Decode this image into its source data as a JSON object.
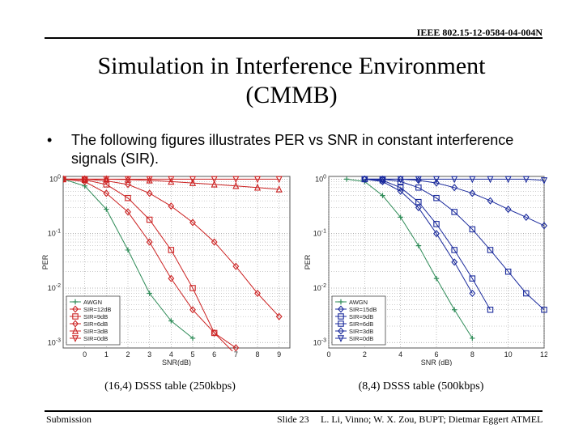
{
  "slide": {
    "doc_id": "IEEE 802.15-12-0584-04-004N",
    "title_line1": "Simulation in Interference Environment",
    "title_line2": "(CMMB)",
    "bullet_symbol": "•",
    "bullet_text": "The following figures illustrates PER vs SNR in constant interference signals (SIR).",
    "caption_left": "(16,4) DSSS table (250kbps)",
    "caption_right": "(8,4) DSSS table (500kbps)",
    "footer_left": "Submission",
    "footer_mid": "Slide 23",
    "footer_right": "L. Li, Vinno; W. X. Zou, BUPT; Dietmar Eggert ATMEL"
  },
  "chart_data": [
    {
      "type": "line",
      "title": "",
      "xlabel": "SNR(dB)",
      "ylabel": "PER",
      "x_ticks": [
        "0",
        "1",
        "2",
        "3",
        "4",
        "5",
        "6",
        "7",
        "8",
        "9"
      ],
      "y_ticks": [
        "10^0",
        "10^-1",
        "10^-2",
        "10^-3"
      ],
      "xlim": [
        -1,
        9.5
      ],
      "ylim_log10": [
        -3.1,
        0.05
      ],
      "log_y": true,
      "grid": true,
      "legend_position": "bottom-left",
      "series": [
        {
          "name": "AWGN",
          "marker": "plus",
          "color": "#2e8b57",
          "x": [
            -1,
            0,
            1,
            2,
            3,
            4,
            5
          ],
          "y": [
            1,
            0.75,
            0.28,
            0.05,
            0.008,
            0.0025,
            0.0012
          ]
        },
        {
          "name": "SIR=12dB",
          "marker": "diamond",
          "color": "#cc2222",
          "x": [
            -1,
            0,
            1,
            2,
            3,
            4,
            5,
            6,
            7
          ],
          "y": [
            1,
            0.9,
            0.55,
            0.25,
            0.07,
            0.015,
            0.004,
            0.0015,
            0.0008
          ]
        },
        {
          "name": "SIR=9dB",
          "marker": "square",
          "color": "#cc2222",
          "x": [
            -1,
            0,
            1,
            2,
            3,
            4,
            5,
            6,
            7
          ],
          "y": [
            1,
            0.97,
            0.8,
            0.45,
            0.18,
            0.05,
            0.01,
            0.0015,
            0.0006
          ]
        },
        {
          "name": "SIR=6dB",
          "marker": "diamond",
          "color": "#cc2222",
          "x": [
            -1,
            0,
            1,
            2,
            3,
            4,
            5,
            6,
            7,
            8,
            9
          ],
          "y": [
            1,
            1,
            0.93,
            0.8,
            0.55,
            0.32,
            0.16,
            0.07,
            0.025,
            0.008,
            0.003
          ]
        },
        {
          "name": "SIR=3dB",
          "marker": "triangle-up",
          "color": "#cc2222",
          "x": [
            -1,
            0,
            1,
            2,
            3,
            4,
            5,
            6,
            7,
            8,
            9
          ],
          "y": [
            1,
            1,
            1,
            0.98,
            0.95,
            0.9,
            0.85,
            0.8,
            0.75,
            0.7,
            0.65
          ]
        },
        {
          "name": "SIR=0dB",
          "marker": "triangle-down",
          "color": "#cc2222",
          "x": [
            -1,
            0,
            1,
            2,
            3,
            4,
            5,
            6,
            7,
            8,
            9
          ],
          "y": [
            1,
            1,
            1,
            1,
            1,
            1,
            1,
            1,
            1,
            1,
            1
          ]
        }
      ]
    },
    {
      "type": "line",
      "title": "",
      "xlabel": "SNR (dB)",
      "ylabel": "PER",
      "x_ticks": [
        "0",
        "2",
        "4",
        "6",
        "8",
        "10",
        "12"
      ],
      "y_ticks": [
        "10^0",
        "10^-1",
        "10^-2",
        "10^-3"
      ],
      "xlim": [
        0,
        12
      ],
      "ylim_log10": [
        -3.1,
        0.05
      ],
      "log_y": true,
      "grid": true,
      "legend_position": "bottom-left",
      "series": [
        {
          "name": "AWGN",
          "marker": "plus",
          "color": "#2e8b57",
          "x": [
            1,
            2,
            3,
            4,
            5,
            6,
            7,
            8
          ],
          "y": [
            1,
            0.9,
            0.5,
            0.2,
            0.06,
            0.015,
            0.004,
            0.0012
          ]
        },
        {
          "name": "SIR=15dB",
          "marker": "diamond",
          "color": "#1a2a9c",
          "x": [
            2,
            3,
            4,
            5,
            6,
            7,
            8
          ],
          "y": [
            1,
            0.9,
            0.6,
            0.3,
            0.1,
            0.03,
            0.008
          ]
        },
        {
          "name": "SIR=9dB",
          "marker": "square",
          "color": "#1a2a9c",
          "x": [
            2,
            3,
            4,
            5,
            6,
            7,
            8,
            9
          ],
          "y": [
            1,
            0.95,
            0.7,
            0.38,
            0.15,
            0.05,
            0.015,
            0.004
          ]
        },
        {
          "name": "SIR=6dB",
          "marker": "square",
          "color": "#1a2a9c",
          "x": [
            2,
            3,
            4,
            5,
            6,
            7,
            8,
            9,
            10,
            11,
            12
          ],
          "y": [
            1,
            1,
            0.9,
            0.7,
            0.45,
            0.25,
            0.12,
            0.05,
            0.02,
            0.008,
            0.004
          ]
        },
        {
          "name": "SIR=3dB",
          "marker": "diamond",
          "color": "#1a2a9c",
          "x": [
            2,
            3,
            4,
            5,
            6,
            7,
            8,
            9,
            10,
            11,
            12
          ],
          "y": [
            1,
            1,
            1,
            0.95,
            0.85,
            0.7,
            0.55,
            0.4,
            0.28,
            0.2,
            0.14
          ]
        },
        {
          "name": "SIR=0dB",
          "marker": "triangle-down",
          "color": "#1a2a9c",
          "x": [
            2,
            3,
            4,
            5,
            6,
            7,
            8,
            9,
            10,
            11,
            12
          ],
          "y": [
            1,
            1,
            1,
            1,
            1,
            1,
            1,
            1,
            1,
            1,
            0.95
          ]
        }
      ]
    }
  ]
}
